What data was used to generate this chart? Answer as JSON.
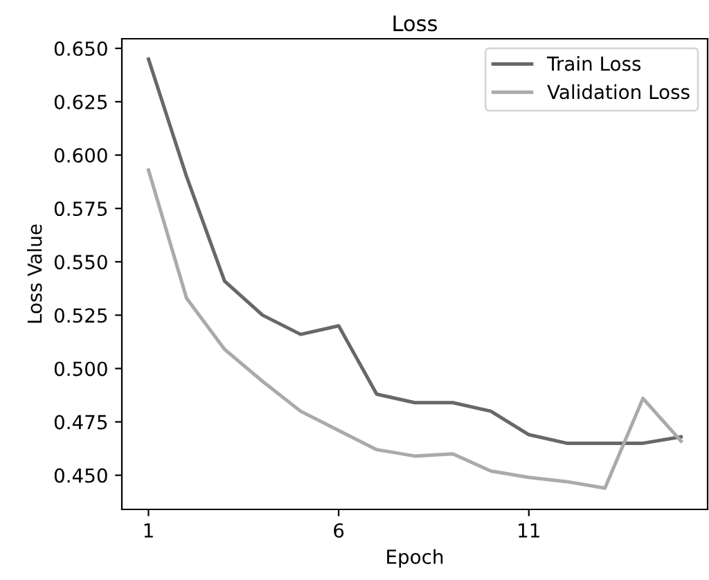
{
  "chart_data": {
    "type": "line",
    "title": "Loss",
    "xlabel": "Epoch",
    "ylabel": "Loss Value",
    "x": [
      1,
      2,
      3,
      4,
      5,
      6,
      7,
      8,
      9,
      10,
      11,
      12,
      13,
      14,
      15
    ],
    "series": [
      {
        "name": "Train Loss",
        "color": "#686868",
        "values": [
          0.645,
          0.59,
          0.541,
          0.525,
          0.516,
          0.52,
          0.488,
          0.484,
          0.484,
          0.48,
          0.469,
          0.465,
          0.465,
          0.465,
          0.468
        ]
      },
      {
        "name": "Validation Loss",
        "color": "#aaaaaa",
        "values": [
          0.593,
          0.533,
          0.509,
          0.494,
          0.48,
          0.471,
          0.462,
          0.459,
          0.46,
          0.452,
          0.449,
          0.447,
          0.444,
          0.486,
          0.466
        ]
      }
    ],
    "xlim": [
      0.3,
      15.7
    ],
    "ylim": [
      0.434,
      0.6545
    ],
    "xticks": [
      1,
      6,
      11
    ],
    "yticks": [
      {
        "value": 0.45,
        "label": "0.450"
      },
      {
        "value": 0.475,
        "label": "0.475"
      },
      {
        "value": 0.5,
        "label": "0.500"
      },
      {
        "value": 0.525,
        "label": "0.525"
      },
      {
        "value": 0.55,
        "label": "0.550"
      },
      {
        "value": 0.575,
        "label": "0.575"
      },
      {
        "value": 0.6,
        "label": "0.600"
      },
      {
        "value": 0.625,
        "label": "0.625"
      },
      {
        "value": 0.65,
        "label": "0.650"
      }
    ],
    "grid": false,
    "legend": "top right",
    "marker": "none",
    "line_style": "solid"
  }
}
